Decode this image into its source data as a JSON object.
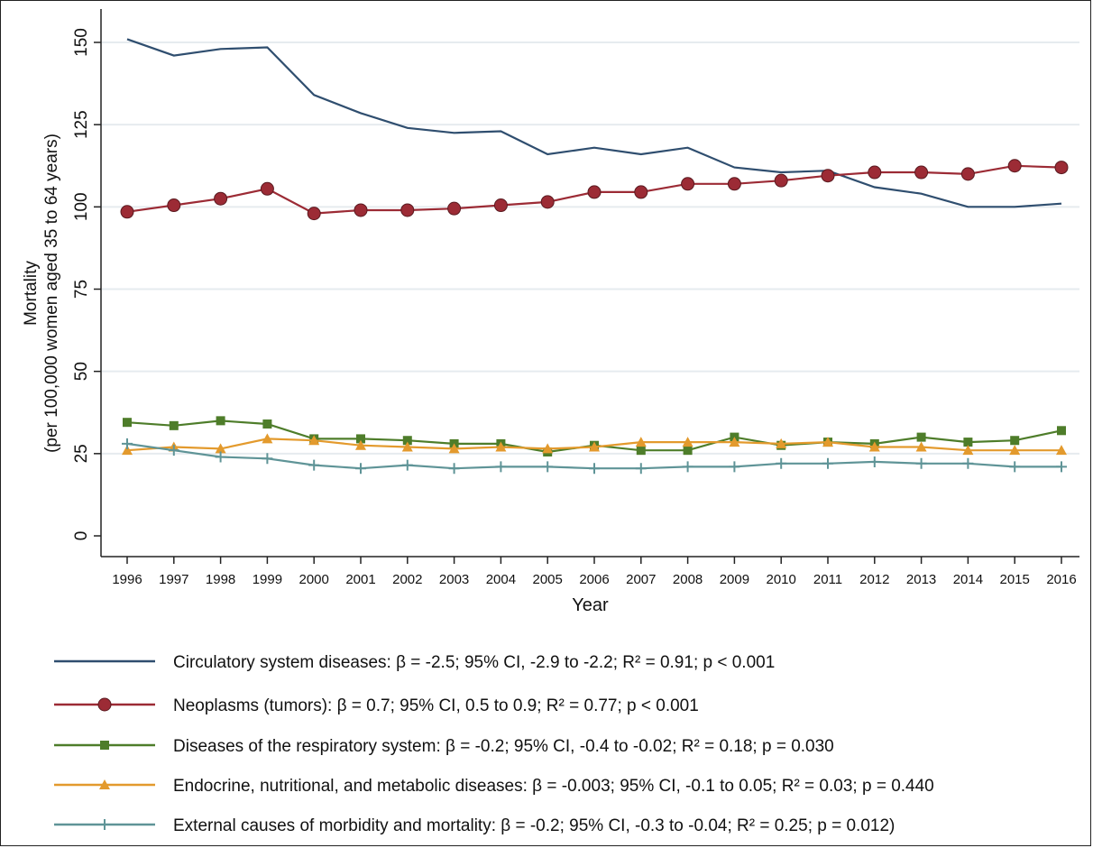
{
  "chart_data": {
    "type": "line",
    "xlabel": "Year",
    "ylabel_line1": "Mortality",
    "ylabel_line2": "(per 100,000 women aged 35 to 64 years)",
    "ylim": [
      0,
      155
    ],
    "yticks": [
      0,
      25,
      50,
      75,
      100,
      125,
      150
    ],
    "x": [
      "1996",
      "1997",
      "1998",
      "1999",
      "2000",
      "2001",
      "2002",
      "2003",
      "2004",
      "2005",
      "2006",
      "2007",
      "2008",
      "2009",
      "2010",
      "2011",
      "2012",
      "2013",
      "2014",
      "2015",
      "2016"
    ],
    "grid": "horizontal",
    "legend_position": "bottom",
    "series": [
      {
        "name": "Circulatory system diseases: β = -2.5; 95% CI, -2.9 to -2.2; R² = 0.91; p < 0.001",
        "color": "#2f4e6f",
        "marker": "none",
        "values": [
          151,
          146,
          148,
          148.5,
          134,
          128.5,
          124,
          122.5,
          123,
          116,
          118,
          116,
          118,
          112,
          110.5,
          111,
          106,
          104,
          100,
          100,
          101
        ]
      },
      {
        "name": "Neoplasms (tumors): β = 0.7; 95% CI, 0.5 to 0.9; R² = 0.77; p < 0.001",
        "color": "#9c2b35",
        "marker": "circle",
        "values": [
          98.5,
          100.5,
          102.5,
          105.5,
          98,
          99,
          99,
          99.5,
          100.5,
          101.5,
          104.5,
          104.5,
          107,
          107,
          108,
          109.5,
          110.5,
          110.5,
          110,
          112.5,
          112
        ]
      },
      {
        "name": "Diseases of the respiratory system: β = -0.2; 95% CI, -0.4 to -0.02; R² = 0.18; p = 0.030",
        "color": "#4e7d2a",
        "marker": "square",
        "values": [
          34.5,
          33.5,
          35,
          34,
          29.5,
          29.5,
          29,
          28,
          28,
          25.5,
          27.5,
          26,
          26,
          30,
          27.5,
          28.5,
          28,
          30,
          28.5,
          29,
          32
        ]
      },
      {
        "name": "Endocrine, nutritional, and metabolic diseases: β = -0.003; 95% CI, -0.1 to 0.05; R² = 0.03; p = 0.440",
        "color": "#e39a2d",
        "marker": "triangle",
        "values": [
          26,
          27,
          26.5,
          29.5,
          29,
          27.5,
          27,
          26.5,
          27,
          26.5,
          27,
          28.5,
          28.5,
          28.5,
          28,
          28.5,
          27,
          27,
          26,
          26,
          26
        ]
      },
      {
        "name": "External causes of morbidity and mortality: β = -0.2; 95% CI, -0.3 to -0.04; R² = 0.25; p = 0.012)",
        "color": "#5f9497",
        "marker": "plus",
        "values": [
          28,
          26,
          24,
          23.5,
          21.5,
          20.5,
          21.5,
          20.5,
          21,
          21,
          20.5,
          20.5,
          21,
          21,
          22,
          22,
          22.5,
          22,
          22,
          21,
          21
        ]
      }
    ]
  }
}
